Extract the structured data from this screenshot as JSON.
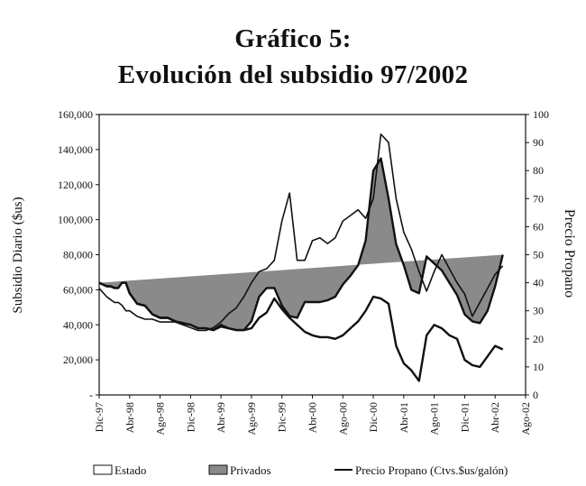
{
  "chart_data": {
    "type": "area",
    "title": "Gráfico 5:",
    "subtitle": "Evolución del subsidio 97/2002",
    "ylabel": "Subsidio Diario ($us)",
    "ylabel_right": "Precio Propano",
    "ylim": [
      0,
      160000
    ],
    "ylim_right": [
      0,
      100
    ],
    "yticks": [
      "-",
      "20,000",
      "40,000",
      "60,000",
      "80,000",
      "100,000",
      "120,000",
      "140,000",
      "160,000"
    ],
    "yticks_right": [
      "0",
      "10",
      "20",
      "30",
      "40",
      "50",
      "60",
      "70",
      "80",
      "90",
      "100"
    ],
    "x_ticks": [
      "Dic-97",
      "Abr-98",
      "Ago-98",
      "Dic-98",
      "Abr-99",
      "Ago-99",
      "Dic-99",
      "Abr-00",
      "Ago-00",
      "Dic-00",
      "Abr-01",
      "Ago-01",
      "Dic-01",
      "Abr-02",
      "Ago-02"
    ],
    "x_start": "Dic-97",
    "legend": {
      "placement": "bottom",
      "entries": [
        "Estado",
        "Privados",
        "Precio Propano (Ctvs.$us/galón)"
      ]
    },
    "grid": false,
    "colors": {
      "estado": "#ffffff",
      "privados": "#8a8a8a",
      "line": "#111111"
    },
    "x_months": [
      0,
      1,
      1.5,
      2,
      2.5,
      3,
      3.5,
      4,
      5,
      6,
      7,
      8,
      9,
      10,
      11,
      12,
      13,
      14,
      15,
      16,
      17,
      18,
      19,
      20,
      21,
      22,
      23,
      24,
      25,
      26,
      27,
      28,
      29,
      30,
      31,
      32,
      33,
      34,
      35,
      36,
      37,
      38,
      39,
      40,
      41,
      42,
      43,
      44,
      45,
      46,
      47,
      48,
      49,
      50,
      51,
      52,
      53,
      54,
      55,
      56
    ],
    "series": [
      {
        "name": "Estado",
        "values": [
          64000,
          62000,
          62000,
          61000,
          61000,
          64000,
          64000,
          58000,
          52000,
          51000,
          46000,
          44000,
          44000,
          42000,
          41000,
          40000,
          38000,
          38000,
          37000,
          39000,
          38000,
          37000,
          37000,
          38000,
          44000,
          47000,
          55000,
          49000,
          44000,
          40000,
          36000,
          34000,
          33000,
          33000,
          32000,
          34000,
          38000,
          42000,
          48000,
          56000,
          55000,
          52000,
          28000,
          18000,
          14000,
          8000,
          34000,
          40000,
          38000,
          34000,
          32000,
          20000,
          17000,
          16000,
          22000,
          28000,
          26000
        ]
      },
      {
        "name": "Privados",
        "values": [
          64000,
          62000,
          62000,
          61000,
          61000,
          64000,
          64000,
          58000,
          52000,
          51000,
          46000,
          44000,
          44000,
          42000,
          41000,
          40000,
          38000,
          38000,
          37000,
          40000,
          38000,
          37000,
          37000,
          42000,
          56000,
          61000,
          61000,
          51000,
          45000,
          44000,
          53000,
          53000,
          53000,
          54000,
          56000,
          63000,
          68000,
          74000,
          88000,
          128000,
          135000,
          112000,
          86000,
          74000,
          60000,
          58000,
          79000,
          75000,
          71000,
          64000,
          57000,
          46000,
          42000,
          41000,
          48000,
          62000,
          80000
        ]
      },
      {
        "name": "Precio Propano (Ctvs.$us/galón)",
        "values": [
          38,
          35,
          34,
          33,
          33,
          32,
          30,
          30,
          28,
          27,
          27,
          26,
          26,
          26,
          25,
          24,
          23,
          23,
          24,
          26,
          29,
          31,
          35,
          40,
          44,
          45,
          48,
          62,
          72,
          48,
          48,
          55,
          56,
          54,
          56,
          62,
          64,
          66,
          63,
          70,
          93,
          90,
          70,
          58,
          52,
          44,
          37,
          44,
          50,
          45,
          40,
          36,
          28,
          33,
          38,
          43,
          46
        ]
      }
    ]
  }
}
